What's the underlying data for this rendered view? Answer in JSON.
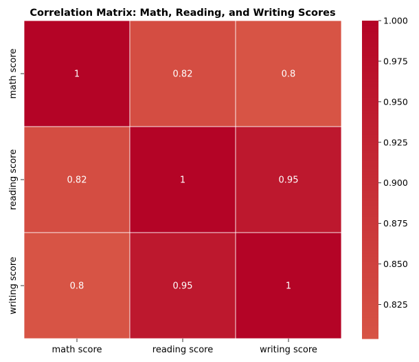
{
  "chart_data": {
    "type": "heatmap",
    "title": "Correlation Matrix: Math, Reading, and Writing Scores",
    "row_labels": [
      "math score",
      "reading score",
      "writing score"
    ],
    "col_labels": [
      "math score",
      "reading score",
      "writing score"
    ],
    "values": [
      [
        1,
        0.82,
        0.8
      ],
      [
        0.82,
        1,
        0.95
      ],
      [
        0.8,
        0.95,
        1
      ]
    ],
    "annotations": [
      [
        "1",
        "0.82",
        "0.8"
      ],
      [
        "0.82",
        "1",
        "0.95"
      ],
      [
        "0.8",
        "0.95",
        "1"
      ]
    ],
    "colorbar": {
      "range": [
        0.804,
        1.0
      ],
      "ticks": [
        "0.825",
        "0.850",
        "0.875",
        "0.900",
        "0.925",
        "0.950",
        "0.975",
        "1.000"
      ],
      "color_low": "#d75445",
      "color_high": "#b40426"
    },
    "cell_border_color": "#ffffff",
    "annotation_color": "#ffffff"
  }
}
